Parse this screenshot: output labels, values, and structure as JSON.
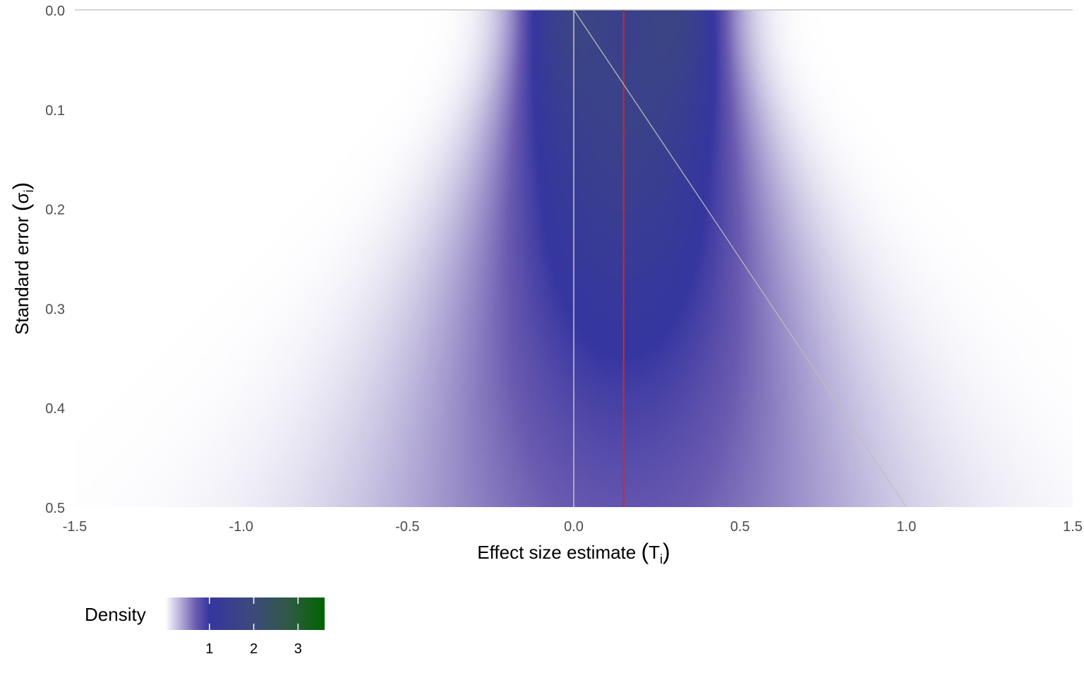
{
  "chart_data": {
    "type": "heatmap",
    "title": "",
    "xlabel_main": "Effect size estimate",
    "xlabel_symbol": "T",
    "xlabel_subscript": "i",
    "ylabel_main": "Standard error",
    "ylabel_symbol": "σ",
    "ylabel_subscript": "i",
    "xlim": [
      -1.5,
      1.5
    ],
    "ylim": [
      0,
      0.5
    ],
    "y_reversed": true,
    "x_ticks": [
      -1.5,
      -1.0,
      -0.5,
      0.0,
      0.5,
      1.0,
      1.5
    ],
    "x_tick_labels": [
      "-1.5",
      "-1.0",
      "-0.5",
      "0.0",
      "0.5",
      "1.0",
      "1.5"
    ],
    "y_ticks": [
      0.0,
      0.1,
      0.2,
      0.3,
      0.4,
      0.5
    ],
    "y_tick_labels": [
      "0.0",
      "0.1",
      "0.2",
      "0.3",
      "0.4",
      "0.5"
    ],
    "grid": false,
    "density_model": {
      "components": [
        {
          "mean": 0.0,
          "tau": 0.12,
          "weight": 0.5
        },
        {
          "mean": 0.3,
          "tau": 0.12,
          "weight": 0.5
        }
      ]
    },
    "reference_lines": [
      {
        "name": "null-line",
        "type": "vertical",
        "x": 0.0,
        "color": "#bebebe"
      },
      {
        "name": "pooled-estimate-line",
        "type": "vertical",
        "x": 0.15,
        "color": "#cc2a2a"
      },
      {
        "name": "significance-boundary-line",
        "type": "line",
        "from": [
          0.0,
          0.0
        ],
        "to": [
          1.0,
          0.5
        ],
        "color": "#bebebe"
      }
    ],
    "legend": {
      "title": "Density",
      "placement": "bottom-left",
      "ticks": [
        1,
        2,
        3
      ],
      "tick_labels": [
        "1",
        "2",
        "3"
      ],
      "range": [
        0,
        3.6
      ]
    },
    "colors": {
      "low": "#ffffff",
      "mid": "#3636a0",
      "high": "#006400"
    },
    "color_stops": [
      {
        "value": 0.0,
        "color": "#ffffff"
      },
      {
        "value": 0.7,
        "color": "#6a5ab0"
      },
      {
        "value": 1.0,
        "color": "#3636a0"
      },
      {
        "value": 2.0,
        "color": "#3d4a7a"
      },
      {
        "value": 2.8,
        "color": "#2f5a44"
      },
      {
        "value": 3.6,
        "color": "#006400"
      }
    ]
  }
}
